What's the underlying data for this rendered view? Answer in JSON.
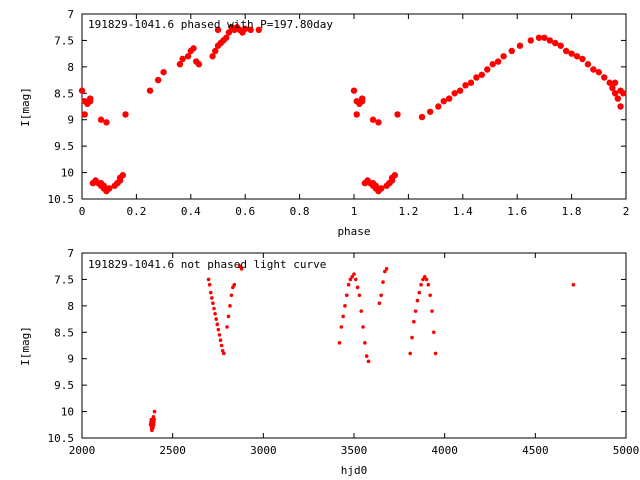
{
  "chart_data": [
    {
      "type": "scatter",
      "title": "191829-1041.6 phased with P=197.80day",
      "xlabel": "phase",
      "ylabel": "I[mag]",
      "xlim": [
        0,
        2
      ],
      "ylim": [
        10.5,
        7
      ],
      "y_inverted": true,
      "xticks": [
        "0",
        "0.2",
        "0.4",
        "0.6",
        "0.8",
        "1",
        "1.2",
        "1.4",
        "1.6",
        "1.8",
        "2"
      ],
      "yticks": [
        "7",
        "7.5",
        "8",
        "8.5",
        "9",
        "9.5",
        "10",
        "10.5"
      ],
      "grid": false,
      "marker": "filled-circle-large",
      "color": "#ff0000",
      "series": [
        {
          "x": [
            0.0,
            0.01,
            0.02,
            0.03,
            0.01,
            0.03,
            0.05,
            0.04,
            0.06,
            0.07,
            0.08,
            0.09,
            0.07,
            0.08,
            0.09,
            0.1,
            0.12,
            0.13,
            0.14,
            0.15,
            0.16,
            0.14,
            0.07,
            0.1,
            0.13,
            0.25,
            0.28,
            0.3,
            0.36,
            0.37,
            0.39,
            0.4,
            0.41,
            0.43,
            0.42,
            0.48,
            0.49,
            0.5,
            0.51,
            0.52,
            0.53,
            0.54,
            0.55,
            0.56,
            0.57,
            0.58,
            0.59,
            0.6,
            0.62,
            0.65,
            0.5,
            1.0,
            1.01,
            1.02,
            1.03,
            1.01,
            1.03,
            1.05,
            1.04,
            1.06,
            1.07,
            1.08,
            1.09,
            1.07,
            1.08,
            1.09,
            1.1,
            1.12,
            1.13,
            1.14,
            1.15,
            1.16,
            1.14,
            1.07,
            1.1,
            1.13,
            1.25,
            1.28,
            1.31,
            1.33,
            1.35,
            1.37,
            1.39,
            1.41,
            1.43,
            1.45,
            1.47,
            1.49,
            1.51,
            1.53,
            1.55,
            1.58,
            1.61,
            1.65,
            1.68,
            1.7,
            1.72,
            1.74,
            1.76,
            1.78,
            1.8,
            1.82,
            1.84,
            1.86,
            1.88,
            1.9,
            1.92,
            1.94,
            1.95,
            1.96,
            1.97,
            1.98,
            1.99,
            1.98,
            1.96
          ],
          "y": [
            8.45,
            8.65,
            8.7,
            8.6,
            8.9,
            8.65,
            10.15,
            10.2,
            10.2,
            10.25,
            10.3,
            10.35,
            10.2,
            10.25,
            9.05,
            10.3,
            10.25,
            10.2,
            10.1,
            10.05,
            8.9,
            10.15,
            9.0,
            10.3,
            10.2,
            8.45,
            8.25,
            8.1,
            7.95,
            7.85,
            7.8,
            7.7,
            7.65,
            7.95,
            7.9,
            7.8,
            7.7,
            7.6,
            7.55,
            7.5,
            7.45,
            7.35,
            7.25,
            7.3,
            7.25,
            7.3,
            7.35,
            7.28,
            7.3,
            7.3,
            7.3,
            8.45,
            8.65,
            8.7,
            8.6,
            8.9,
            8.65,
            10.15,
            10.2,
            10.2,
            10.25,
            10.3,
            10.35,
            10.2,
            10.25,
            9.05,
            10.3,
            10.25,
            10.2,
            10.1,
            10.05,
            8.9,
            10.15,
            9.0,
            10.3,
            10.2,
            8.95,
            8.85,
            8.75,
            8.65,
            8.6,
            8.5,
            8.45,
            8.35,
            8.3,
            8.2,
            8.15,
            8.05,
            7.95,
            7.9,
            7.8,
            7.7,
            7.6,
            7.5,
            7.45,
            7.45,
            7.5,
            7.55,
            7.6,
            7.7,
            7.75,
            7.8,
            7.85,
            7.95,
            8.05,
            8.1,
            8.2,
            8.3,
            8.4,
            8.5,
            8.6,
            8.75,
            8.5,
            8.45,
            8.3
          ]
        }
      ]
    },
    {
      "type": "scatter",
      "title": "191829-1041.6 not phased light curve",
      "xlabel": "hjd0",
      "ylabel": "I[mag]",
      "xlim": [
        2000,
        5000
      ],
      "ylim": [
        10.5,
        7
      ],
      "y_inverted": true,
      "xticks": [
        "2000",
        "2500",
        "3000",
        "3500",
        "4000",
        "4500",
        "5000"
      ],
      "yticks": [
        "7",
        "7.5",
        "8",
        "8.5",
        "9",
        "9.5",
        "10",
        "10.5"
      ],
      "grid": false,
      "marker": "filled-circle-small",
      "color": "#ff0000",
      "series": [
        {
          "x": [
            2378,
            2380,
            2382,
            2384,
            2386,
            2388,
            2390,
            2392,
            2394,
            2396,
            2398,
            2400,
            2385,
            2390,
            2395,
            2698,
            2704,
            2710,
            2716,
            2722,
            2728,
            2734,
            2740,
            2746,
            2752,
            2758,
            2764,
            2770,
            2776,
            2782,
            2800,
            2808,
            2816,
            2824,
            2832,
            2840,
            2870,
            2880,
            3420,
            3430,
            3440,
            3450,
            3460,
            3470,
            3480,
            3490,
            3500,
            3510,
            3520,
            3530,
            3540,
            3550,
            3560,
            3570,
            3580,
            3640,
            3650,
            3660,
            3670,
            3680,
            3810,
            3820,
            3830,
            3840,
            3850,
            3860,
            3870,
            3880,
            3890,
            3900,
            3910,
            3920,
            3930,
            3940,
            3950,
            4710
          ],
          "y": [
            10.25,
            10.2,
            10.15,
            10.3,
            10.35,
            10.25,
            10.2,
            10.3,
            10.1,
            10.2,
            10.15,
            10.0,
            10.35,
            10.3,
            10.25,
            7.5,
            7.6,
            7.75,
            7.85,
            7.95,
            8.05,
            8.15,
            8.25,
            8.35,
            8.45,
            8.55,
            8.65,
            8.75,
            8.85,
            8.9,
            8.4,
            8.2,
            8.0,
            7.8,
            7.65,
            7.6,
            7.25,
            7.3,
            8.7,
            8.4,
            8.2,
            8.0,
            7.8,
            7.6,
            7.5,
            7.45,
            7.4,
            7.5,
            7.65,
            7.8,
            8.1,
            8.4,
            8.7,
            8.95,
            9.05,
            7.95,
            7.8,
            7.55,
            7.35,
            7.3,
            8.9,
            8.6,
            8.3,
            8.1,
            7.9,
            7.75,
            7.6,
            7.5,
            7.45,
            7.5,
            7.6,
            7.8,
            8.1,
            8.5,
            8.9,
            7.6
          ]
        }
      ]
    }
  ]
}
